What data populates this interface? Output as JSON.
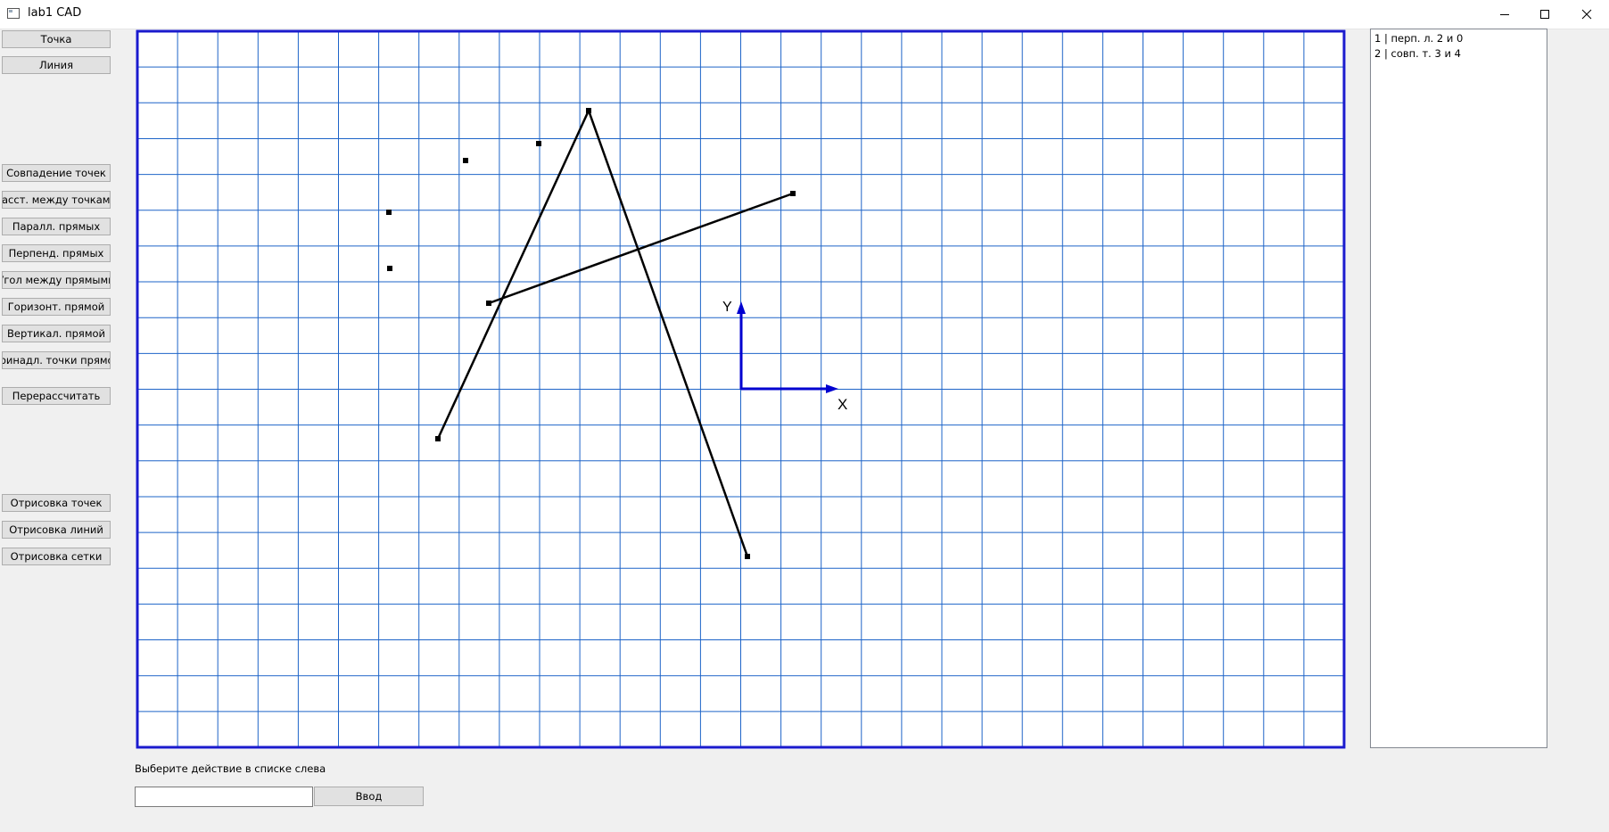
{
  "window": {
    "title": "lab1 CAD"
  },
  "toolbar": {
    "point": "Точка",
    "line": "Линия",
    "coincide_points": "Совпадение точек",
    "dist_points": "Расст. между точками",
    "parallel": "Паралл. прямых",
    "perpendicular": "Перпенд. прямых",
    "angle": "Угол между прямыми",
    "horizontal": "Горизонт. прямой",
    "vertical": "Вертикал. прямой",
    "point_on_line": "Принадл. точки прямой",
    "recalculate": "Перерассчитать",
    "draw_points": "Отрисовка точек",
    "draw_lines": "Отрисовка линий",
    "draw_grid": "Отрисовка сетки"
  },
  "canvas": {
    "axis_x_label": "X",
    "axis_y_label": "Y",
    "grid_color": "#1e64c8",
    "border_color": "#1a1acd",
    "axis_color": "#0000d0",
    "geometry_color": "#000000"
  },
  "results": [
    "1 | перп. л. 2 и 0",
    "2 | совп. т. 3 и 4"
  ],
  "status": "Выберите действие в списке слева",
  "input": {
    "value": "",
    "button": "Ввод"
  }
}
